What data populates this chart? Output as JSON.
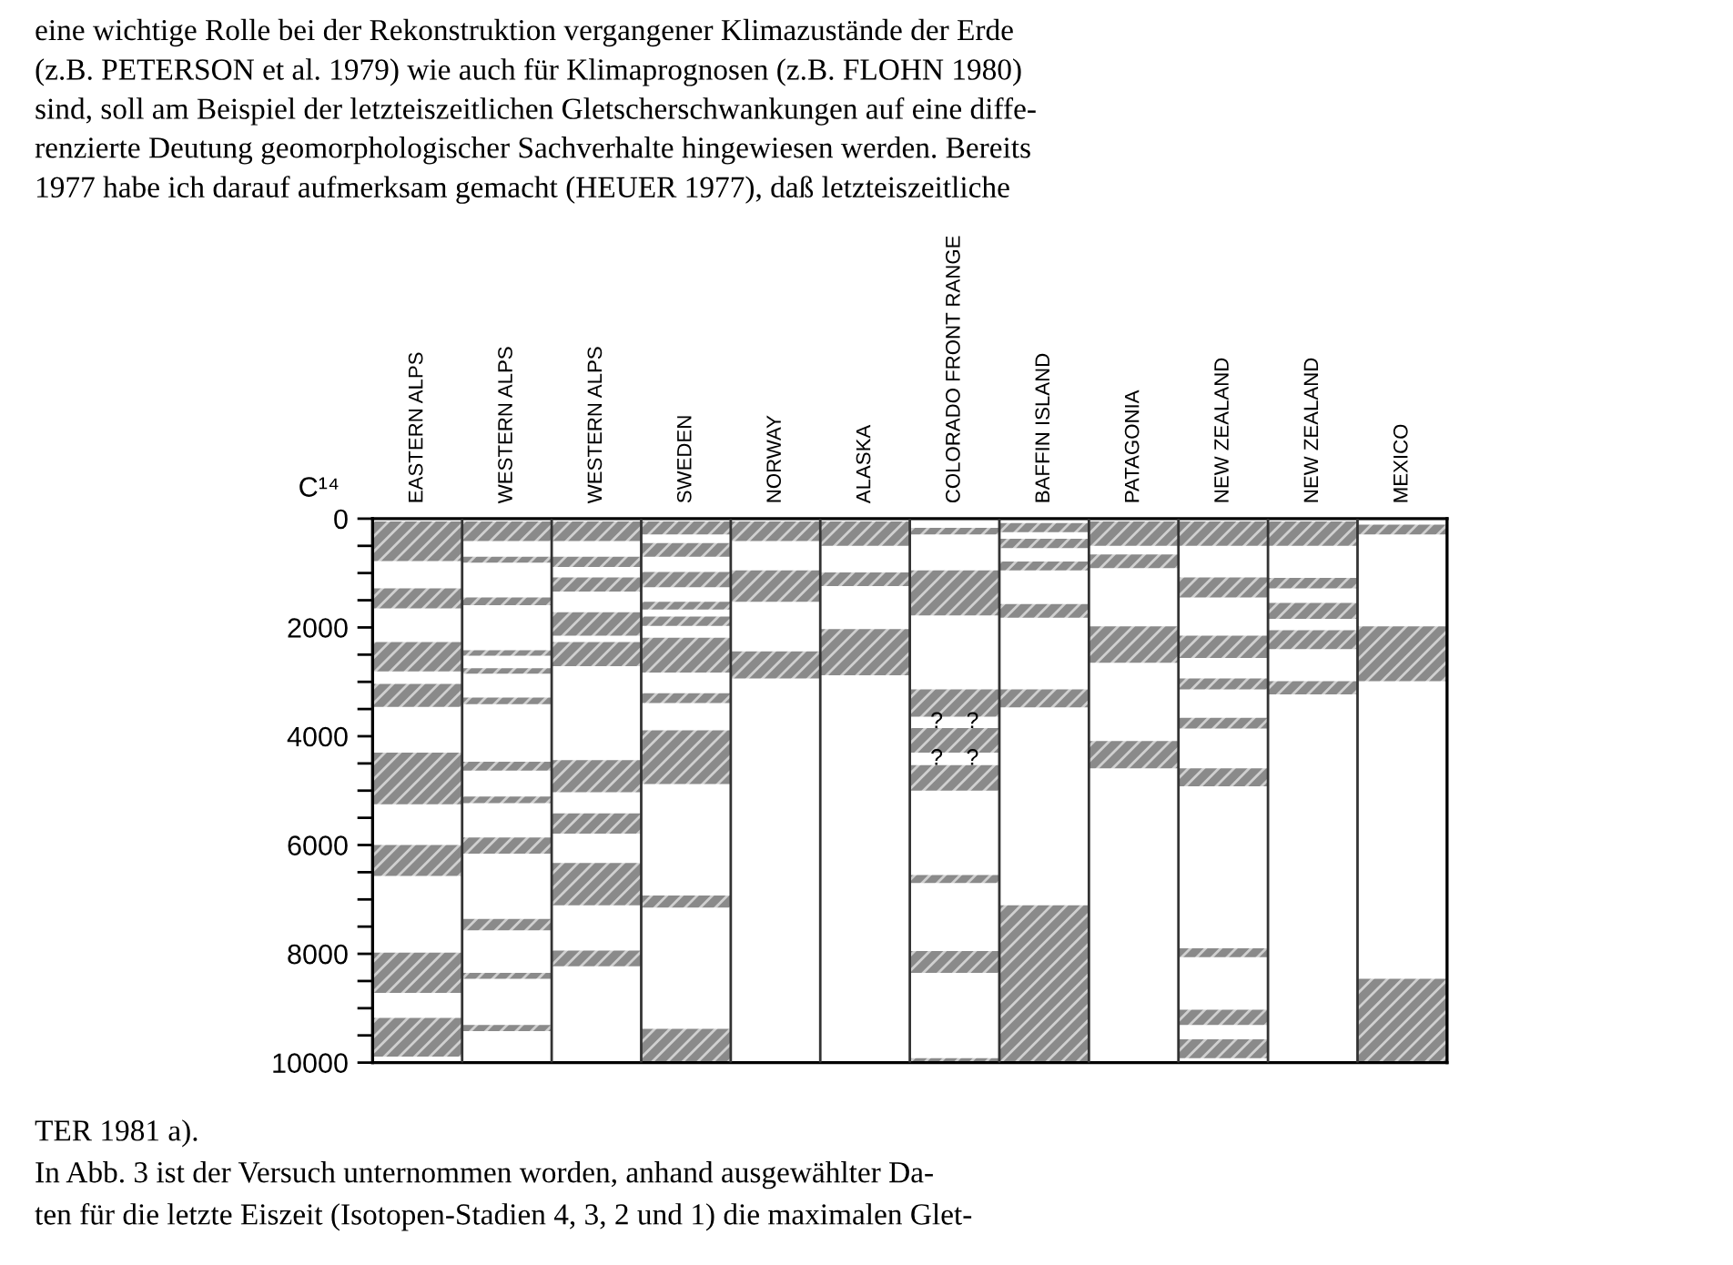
{
  "chart_data": {
    "type": "bar",
    "ylabel": "C¹⁴",
    "categories": [
      "EASTERN ALPS",
      "WESTERN ALPS",
      "WESTERN ALPS",
      "SWEDEN",
      "NORWAY",
      "ALASKA",
      "COLORADO FRONT RANGE",
      "BAFFIN ISLAND",
      "PATAGONIA",
      "NEW ZEALAND",
      "NEW ZEALAND",
      "MEXICO"
    ],
    "ylim": [
      10000,
      0
    ],
    "yticks": [
      0,
      {
        "value": 500,
        "label": null
      },
      {
        "value": 1000,
        "label": null
      },
      {
        "value": 1500,
        "label": null
      },
      2000,
      {
        "value": 2500,
        "label": null
      },
      {
        "value": 3000,
        "label": null
      },
      {
        "value": 3500,
        "label": null
      },
      4000,
      {
        "value": 4500,
        "label": null
      },
      {
        "value": 5000,
        "label": null
      },
      {
        "value": 5500,
        "label": null
      },
      6000,
      {
        "value": 6500,
        "label": null
      },
      {
        "value": 7000,
        "label": null
      },
      {
        "value": 7500,
        "label": null
      },
      8000,
      {
        "value": 8500,
        "label": null
      },
      {
        "value": 9000,
        "label": null
      },
      {
        "value": 9500,
        "label": null
      },
      10000
    ],
    "grid": "x",
    "legend": false,
    "series": [
      {
        "color": "#8a8a8a",
        "base": [
          50,
          50,
          50,
          50,
          50,
          50,
          170,
          80,
          50,
          50,
          50,
          110
        ],
        "values": [
          730,
          360,
          360,
          240,
          360,
          450,
          120,
          170,
          450,
          450,
          450,
          180
        ]
      },
      {
        "color": "#8a8a8a",
        "base": [
          1280,
          700,
          700,
          450,
          950,
          990,
          950,
          370,
          660,
          1080,
          1090,
          1980
        ],
        "values": [
          370,
          110,
          190,
          250,
          580,
          250,
          830,
          170,
          250,
          370,
          190,
          1010
        ]
      },
      {
        "color": "#8a8a8a",
        "base": [
          2270,
          1450,
          1080,
          980,
          2440,
          2030,
          3140,
          790,
          1980,
          2150,
          1550,
          8460
        ],
        "values": [
          540,
          140,
          260,
          280,
          500,
          850,
          500,
          160,
          670,
          410,
          290,
          1540
        ]
      },
      {
        "color": "#8a8a8a",
        "base": [
          3040,
          2420,
          1720,
          1530,
          null,
          null,
          3850,
          1570,
          4090,
          2940,
          2050,
          null
        ],
        "values": [
          420,
          100,
          430,
          140,
          null,
          null,
          450,
          250,
          500,
          200,
          350,
          null
        ]
      },
      {
        "color": "#8a8a8a",
        "base": [
          4300,
          2750,
          2270,
          1800,
          null,
          null,
          4530,
          3140,
          null,
          3660,
          2990,
          null
        ],
        "values": [
          950,
          100,
          440,
          170,
          null,
          null,
          470,
          330,
          null,
          200,
          240,
          null
        ]
      },
      {
        "color": "#8a8a8a",
        "base": [
          6000,
          3290,
          4440,
          2190,
          null,
          null,
          6550,
          7110,
          null,
          4590,
          null,
          null
        ],
        "values": [
          570,
          120,
          590,
          640,
          null,
          null,
          150,
          2890,
          null,
          330,
          null,
          null
        ]
      },
      {
        "color": "#8a8a8a",
        "base": [
          7980,
          4470,
          5420,
          3210,
          null,
          null,
          7950,
          null,
          null,
          7900,
          null,
          null
        ],
        "values": [
          740,
          160,
          370,
          180,
          null,
          null,
          400,
          null,
          null,
          160,
          null,
          null
        ]
      },
      {
        "color": "#8a8a8a",
        "base": [
          9180,
          5110,
          6330,
          3890,
          null,
          null,
          9920,
          null,
          null,
          9030,
          null,
          null
        ],
        "values": [
          710,
          120,
          780,
          990,
          null,
          null,
          80,
          null,
          null,
          280,
          null,
          null
        ]
      },
      {
        "color": "#8a8a8a",
        "base": [
          null,
          5860,
          7940,
          6930,
          null,
          null,
          null,
          null,
          null,
          9570,
          null,
          null
        ],
        "values": [
          null,
          300,
          290,
          220,
          null,
          null,
          null,
          null,
          null,
          350,
          null,
          null
        ]
      },
      {
        "color": "#8a8a8a",
        "base": [
          null,
          7360,
          null,
          9380,
          null,
          null,
          null,
          null,
          null,
          null,
          null,
          null
        ],
        "values": [
          null,
          210,
          null,
          620,
          null,
          null,
          null,
          null,
          null,
          null,
          null,
          null
        ]
      },
      {
        "color": "#8a8a8a",
        "base": [
          null,
          8350,
          null,
          null,
          null,
          null,
          null,
          null,
          null,
          null,
          null,
          null
        ],
        "values": [
          null,
          110,
          null,
          null,
          null,
          null,
          null,
          null,
          null,
          null,
          null,
          null
        ]
      },
      {
        "color": "#8a8a8a",
        "base": [
          null,
          9310,
          null,
          null,
          null,
          null,
          null,
          null,
          null,
          null,
          null,
          null
        ],
        "values": [
          null,
          110,
          null,
          null,
          null,
          null,
          null,
          null,
          null,
          null,
          null,
          null
        ]
      }
    ],
    "annotations": [
      "eine wichtige Rolle bei der Rekonstruktion vergangener Klimazustände der Erde",
      "(z.B. PETERSON et al. 1979) wie auch für Klimaprognosen (z.B. FLOHN 1980)",
      "sind, soll am Beispiel der letzteiszeitlichen Gletscherschwankungen auf eine diffe-",
      "renzierte Deutung geomorphologischer Sachverhalte hingewiesen werden. Bereits",
      "1977 habe ich darauf aufmerksam gemacht (HEUER 1977), daß letzteiszeitliche",
      {
        "text": "?",
        "x": "COLORADO FRONT RANGE",
        "y": 3740
      },
      {
        "text": "?",
        "x": "COLORADO FRONT RANGE",
        "y": 3740
      },
      {
        "text": "?",
        "x": "COLORADO FRONT RANGE",
        "y": 4420
      },
      {
        "text": "?",
        "x": "COLORADO FRONT RANGE",
        "y": 4420
      },
      "TER 1981 a).",
      "In Abb. 3 ist der Versuch unternommen worden, anhand ausgewählter Da-",
      "ten für die letzte Eiszeit (Isotopen-Stadien 4, 3, 2 und 1) die maximalen Glet-"
    ]
  }
}
